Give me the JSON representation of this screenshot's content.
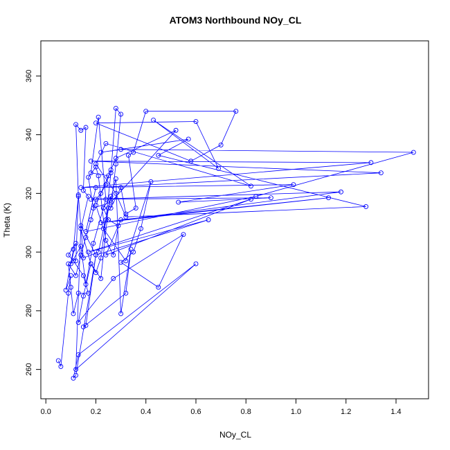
{
  "chart_data": {
    "type": "line",
    "title": "ATOM3 Northbound NOy_CL",
    "xlabel": "NOy_CL",
    "ylabel": "Theta (K)",
    "xlim": [
      -0.02,
      1.53
    ],
    "ylim": [
      250,
      372
    ],
    "x_ticks": [
      0.0,
      0.2,
      0.4,
      0.6,
      0.8,
      1.0,
      1.2,
      1.4
    ],
    "x_tick_labels": [
      "0.0",
      "0.2",
      "0.4",
      "0.6",
      "0.8",
      "1.0",
      "1.2",
      "1.4"
    ],
    "y_ticks": [
      260,
      280,
      300,
      320,
      340,
      360
    ],
    "y_tick_labels": [
      "260",
      "280",
      "300",
      "320",
      "340",
      "360"
    ],
    "grid": false,
    "legend": "none",
    "series": [
      {
        "color": "#0000ff",
        "marker": "open-circle",
        "line": true,
        "points": [
          [
            0.05,
            263
          ],
          [
            0.06,
            261
          ],
          [
            0.09,
            286
          ],
          [
            0.1,
            292
          ],
          [
            0.08,
            287
          ],
          [
            0.11,
            301
          ],
          [
            0.13,
            319
          ],
          [
            0.12,
            343.5
          ],
          [
            0.14,
            341.5
          ],
          [
            0.16,
            342.5
          ],
          [
            0.15,
            321
          ],
          [
            0.17,
            319
          ],
          [
            0.14,
            308
          ],
          [
            0.18,
            296
          ],
          [
            0.2,
            293
          ],
          [
            0.22,
            298
          ],
          [
            0.24,
            311
          ],
          [
            0.26,
            327
          ],
          [
            0.28,
            349
          ],
          [
            0.3,
            347
          ],
          [
            0.28,
            330
          ],
          [
            0.26,
            315
          ],
          [
            0.3,
            322
          ],
          [
            0.32,
            313
          ],
          [
            0.36,
            315
          ],
          [
            0.33,
            333
          ],
          [
            0.35,
            334
          ],
          [
            0.4,
            348
          ],
          [
            0.76,
            348
          ],
          [
            0.7,
            336.5
          ],
          [
            0.58,
            331
          ],
          [
            0.2,
            344
          ],
          [
            0.6,
            344.5
          ],
          [
            0.69,
            328.5
          ],
          [
            0.43,
            345
          ],
          [
            0.82,
            322.5
          ],
          [
            0.24,
            337
          ],
          [
            0.2,
            330
          ],
          [
            0.28,
            320
          ],
          [
            0.32,
            312
          ],
          [
            1.28,
            315.5
          ],
          [
            0.45,
            333
          ],
          [
            0.57,
            338.5
          ],
          [
            0.22,
            334
          ],
          [
            0.3,
            335
          ],
          [
            1.47,
            334
          ],
          [
            0.84,
            319
          ],
          [
            0.16,
            307
          ],
          [
            0.2,
            322
          ],
          [
            1.34,
            327
          ],
          [
            0.18,
            331
          ],
          [
            1.3,
            330.5
          ],
          [
            0.14,
            322
          ],
          [
            0.99,
            323
          ],
          [
            0.53,
            317
          ],
          [
            0.9,
            318.5
          ],
          [
            0.18,
            318
          ],
          [
            1.18,
            320.5
          ],
          [
            0.22,
            310
          ],
          [
            1.13,
            318.5
          ],
          [
            0.3,
            311
          ],
          [
            0.24,
            299
          ],
          [
            0.82,
            318
          ],
          [
            0.17,
            300
          ],
          [
            0.65,
            311
          ],
          [
            0.2,
            299
          ],
          [
            0.14,
            309
          ],
          [
            0.12,
            260
          ],
          [
            0.6,
            296
          ],
          [
            0.13,
            265
          ],
          [
            0.11,
            257
          ],
          [
            0.12,
            258
          ],
          [
            0.2,
            299
          ],
          [
            0.16,
            275
          ],
          [
            0.15,
            274.5
          ],
          [
            0.32,
            286
          ],
          [
            0.34,
            301
          ],
          [
            0.3,
            279
          ],
          [
            0.28,
            325
          ],
          [
            0.25,
            315
          ],
          [
            0.22,
            291
          ],
          [
            0.18,
            296
          ],
          [
            0.15,
            285
          ],
          [
            0.13,
            276
          ],
          [
            0.27,
            291
          ],
          [
            0.55,
            306
          ],
          [
            0.45,
            288
          ],
          [
            0.3,
            296.5
          ],
          [
            0.35,
            300
          ],
          [
            0.38,
            308
          ],
          [
            0.42,
            324
          ],
          [
            0.32,
            297
          ],
          [
            0.23,
            308
          ],
          [
            0.2,
            316
          ],
          [
            0.25,
            326
          ],
          [
            0.18,
            327
          ],
          [
            0.21,
            346
          ],
          [
            0.24,
            318
          ],
          [
            0.19,
            303
          ],
          [
            0.16,
            289
          ],
          [
            0.14,
            302
          ],
          [
            0.1,
            296
          ],
          [
            0.12,
            303
          ],
          [
            0.09,
            299
          ],
          [
            0.11,
            297
          ],
          [
            0.15,
            292
          ],
          [
            0.17,
            286
          ],
          [
            0.13,
            286
          ],
          [
            0.11,
            279
          ],
          [
            0.1,
            288
          ],
          [
            0.09,
            296
          ],
          [
            0.12,
            292
          ],
          [
            0.14,
            299
          ],
          [
            0.16,
            305
          ],
          [
            0.18,
            311
          ],
          [
            0.2,
            318
          ],
          [
            0.22,
            320
          ],
          [
            0.24,
            323
          ],
          [
            0.26,
            328
          ],
          [
            0.28,
            332
          ],
          [
            0.52,
            341.5
          ],
          [
            0.26,
            317
          ],
          [
            0.19,
            315
          ],
          [
            0.17,
            325.5
          ],
          [
            0.2,
            329
          ],
          [
            0.21,
            326
          ],
          [
            0.24,
            304
          ],
          [
            0.27,
            299
          ],
          [
            0.29,
            309
          ],
          [
            0.25,
            311
          ],
          [
            0.23,
            315
          ],
          [
            0.26,
            319
          ],
          [
            0.21,
            300
          ],
          [
            0.15,
            298
          ],
          [
            0.13,
            319.5
          ],
          [
            0.12,
            297
          ]
        ]
      }
    ]
  }
}
